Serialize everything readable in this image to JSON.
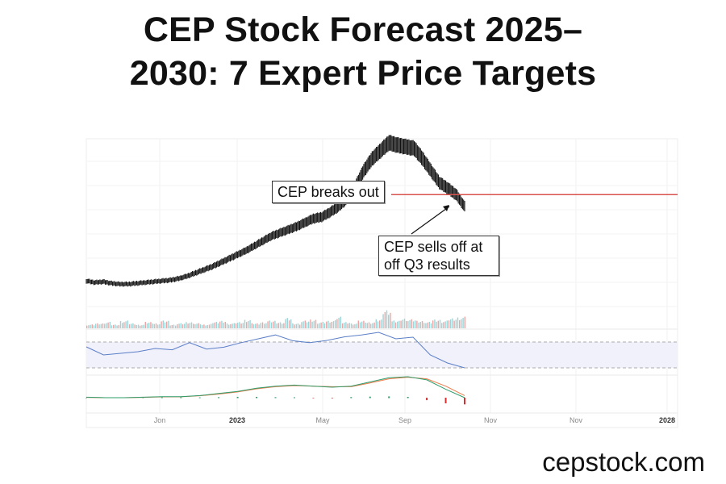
{
  "title": {
    "line1": "CEP Stock Forecast 2025–",
    "line2": "2030: 7 Expert Price Targets"
  },
  "footer": {
    "site": "cepstock.com"
  },
  "chart_data": {
    "type": "line",
    "subtype": "candlestick-price-with-volume-rsi-macd",
    "x_tick_labels": [
      "Jon",
      "2023",
      "May",
      "Sep",
      "Nov",
      "Nov",
      "2028"
    ],
    "y_axis": "unlabeled",
    "grid": true,
    "price": {
      "values": [
        22,
        20,
        21,
        19,
        18,
        18,
        19,
        20,
        21,
        22,
        23,
        25,
        28,
        32,
        36,
        40,
        45,
        50,
        55,
        60,
        66,
        72,
        78,
        82,
        86,
        90,
        95,
        100,
        102,
        108,
        115,
        125,
        140,
        160,
        175,
        185,
        195,
        192,
        190,
        188,
        175,
        160,
        145,
        138,
        130,
        115
      ],
      "color": "#111111",
      "ylim": [
        0,
        200
      ]
    },
    "resistance_line": {
      "value": 130,
      "color": "#d9534f"
    },
    "annotations": [
      {
        "text": "CEP breaks out"
      },
      {
        "text_line1": "CEP sells off at",
        "text_line2": "off Q3 results"
      }
    ],
    "volume": {
      "values": [
        3,
        4,
        5,
        3,
        6,
        4,
        3,
        5,
        4,
        6,
        3,
        4,
        5,
        4,
        3,
        5,
        6,
        4,
        5,
        7,
        4,
        5,
        6,
        5,
        8,
        4,
        6,
        7,
        5,
        6,
        9,
        5,
        4,
        6,
        5,
        7,
        15,
        6,
        8,
        7,
        6,
        5,
        7,
        6,
        8,
        9
      ],
      "up_color": "#9fd3d6",
      "down_color": "#f0a3a3"
    },
    "rsi": {
      "values": [
        62.5,
        50,
        52.5,
        55,
        60,
        58,
        69,
        59,
        62,
        69,
        75,
        81,
        72,
        69,
        72.5,
        78,
        81,
        85,
        75,
        77.5,
        50,
        37.5,
        30
      ],
      "upper_band": 70,
      "lower_band": 30,
      "color": "#5b7fc7",
      "band_color": "#f1f1fc"
    },
    "macd": {
      "macd_line": [
        0.5,
        0,
        0,
        0.5,
        1,
        1,
        2,
        4,
        6,
        9,
        11,
        12,
        11,
        10,
        11,
        15,
        19,
        20,
        17,
        8,
        0
      ],
      "signal_line": [
        0.3,
        0,
        0,
        0.3,
        0.8,
        0.9,
        1.8,
        3.5,
        5.5,
        8.5,
        10.5,
        11.5,
        11,
        10.5,
        10.5,
        14,
        18,
        19.5,
        18,
        11,
        2
      ],
      "histogram": [
        0,
        0,
        0,
        0.2,
        0.3,
        0.3,
        0.3,
        0.5,
        0.8,
        0.8,
        0.5,
        0.4,
        -0.1,
        -0.2,
        0.6,
        1,
        1.2,
        0.8,
        -2,
        -5,
        -6
      ],
      "macd_color": "#2e9c6a",
      "signal_color": "#f07a4a",
      "hist_up_color": "#2e9c6a",
      "hist_down_color": "#d62f2f"
    }
  }
}
